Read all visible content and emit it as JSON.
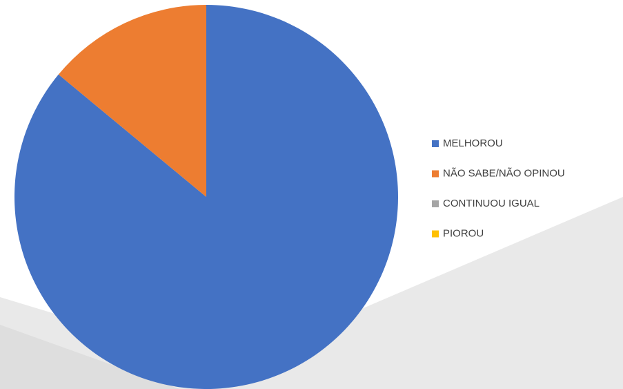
{
  "chart_data": {
    "type": "pie",
    "categories": [
      "MELHOROU",
      "NÃO SABE/NÃO OPINOU",
      "CONTINUOU IGUAL",
      "PIOROU"
    ],
    "values": [
      86,
      14,
      0,
      0
    ],
    "colors": [
      "#4472c4",
      "#ed7d31",
      "#a5a5a5",
      "#ffc000"
    ],
    "legend": "right"
  }
}
